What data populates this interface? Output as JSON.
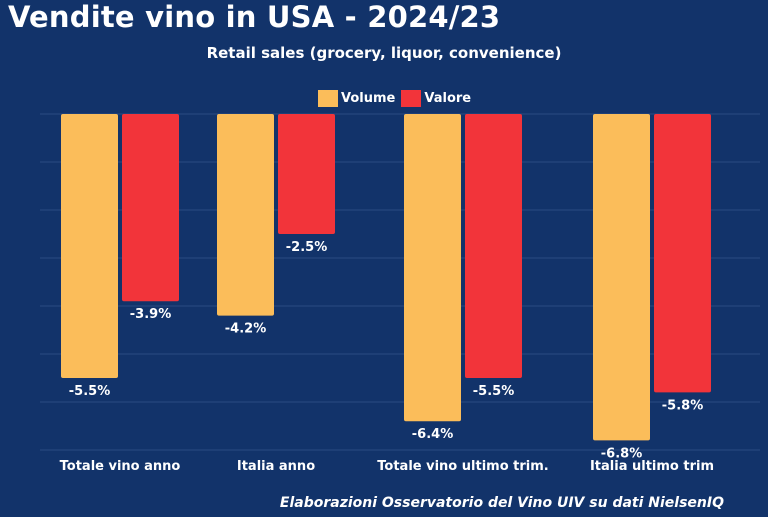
{
  "title": "Vendite vino in USA - 2024/23",
  "subtitle": "Retail sales (grocery, liquor, convenience)",
  "source": "Elaborazioni Osservatorio del Vino UIV su dati NielsenIQ",
  "colors": {
    "background": "#12336a",
    "volume": "#fbbd5a",
    "valore": "#f2343a",
    "grid": "#2a4b82"
  },
  "chart_data": {
    "type": "bar",
    "title": "Vendite vino in USA - 2024/23",
    "subtitle": "Retail sales (grocery, liquor, convenience)",
    "categories": [
      "Totale vino anno",
      "Italia anno",
      "Totale vino ultimo trim.",
      "Italia ultimo trim"
    ],
    "series": [
      {
        "name": "Volume",
        "values": [
          -5.5,
          -4.2,
          -6.4,
          -6.8
        ],
        "labels": [
          "-5.5%",
          "-4.2%",
          "-6.4%",
          "-6.8%"
        ],
        "color": "#fbbd5a"
      },
      {
        "name": "Valore",
        "values": [
          -3.9,
          -2.5,
          -5.5,
          -5.8
        ],
        "labels": [
          "-3.9%",
          "-2.5%",
          "-5.5%",
          "-5.8%"
        ],
        "color": "#f2343a"
      }
    ],
    "ylim": [
      -7,
      0
    ],
    "legend": "top-center",
    "grid": true
  }
}
